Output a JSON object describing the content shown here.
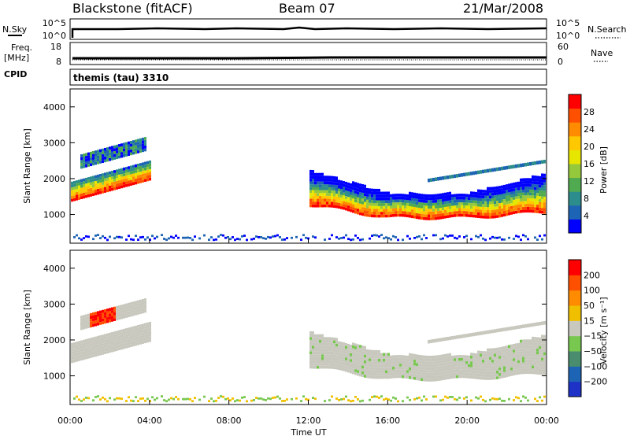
{
  "header": {
    "station": "Blackstone (fitACF)",
    "beam": "Beam 07",
    "date": "21/Mar/2008"
  },
  "strips": {
    "nsky_label": "N.Sky",
    "nsearch_label": "N.Search",
    "noise_ticks_left": [
      "10^5",
      "10^0"
    ],
    "noise_ticks_right": [
      "10^5",
      "10^0"
    ],
    "freq_label": "Freq.",
    "freq_unit": "[MHz]",
    "freq_ticks": [
      "18",
      "8"
    ],
    "nave_label": "Nave",
    "nave_ticks": [
      "60",
      "0"
    ],
    "cpid_label": "CPID",
    "cpid_value": "themis (tau) 3310"
  },
  "chart_data": [
    {
      "type": "heatmap",
      "name": "power",
      "ylabel": "Slant Range [km]",
      "ylim": [
        200,
        4500
      ],
      "yticks": [
        1000,
        2000,
        3000,
        4000
      ],
      "colorbar_label": "Power [dB]",
      "colorbar_ticks": [
        "28",
        "24",
        "20",
        "16",
        "12",
        "8",
        "4"
      ],
      "colors": [
        "#0000ff",
        "#1e64b4",
        "#2d8c8c",
        "#50aa50",
        "#96c83c",
        "#e6e600",
        "#ffc800",
        "#ff8c00",
        "#ff5000",
        "#ff0000"
      ]
    },
    {
      "type": "heatmap",
      "name": "velocity",
      "ylabel": "Slant Range [km]",
      "ylim": [
        200,
        4500
      ],
      "yticks": [
        1000,
        2000,
        3000,
        4000
      ],
      "colorbar_label": "Velocity [m s⁻¹]",
      "colorbar_ticks": [
        "200",
        "100",
        "50",
        "15",
        "−15",
        "−50",
        "−100",
        "−200"
      ],
      "colors": [
        "#1e32c8",
        "#1e64b4",
        "#4a8c6e",
        "#78c850",
        "#c8c8be",
        "#f0c000",
        "#ff8c00",
        "#ff5000",
        "#ff0000"
      ]
    }
  ],
  "xaxis": {
    "ticks": [
      "00:00",
      "04:00",
      "08:00",
      "12:00",
      "16:00",
      "20:00",
      "00:00"
    ],
    "label": "Time UT"
  }
}
